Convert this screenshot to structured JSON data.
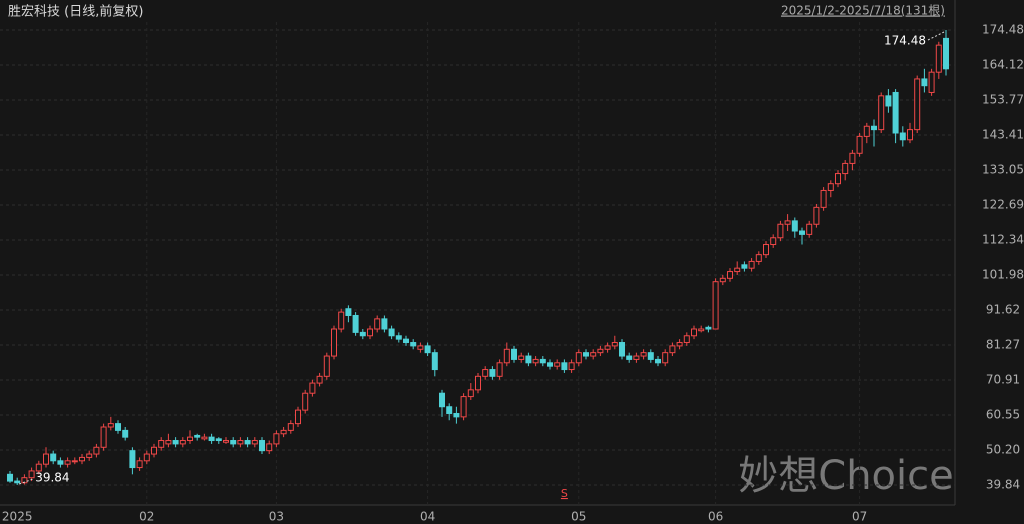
{
  "chart_data": {
    "type": "candlestick",
    "title": "胜宏科技 (日线,前复权)",
    "range_label": "2025/1/2-2025/7/18(131根)",
    "watermark": "妙想Choice",
    "signal": {
      "label": "S",
      "index": 77
    },
    "up_color": "#f04848",
    "down_color": "#4fd1d6",
    "ylim": [
      35.4,
      176.85
    ],
    "yticks": [
      39.84,
      {
        "value": 50.2,
        "label": "50.20"
      },
      60.55,
      70.91,
      81.27,
      91.62,
      101.98,
      112.34,
      122.69,
      133.05,
      143.41,
      153.77,
      164.12,
      174.48
    ],
    "xticks": [
      {
        "value": 1,
        "label": "2025"
      },
      {
        "value": 19,
        "label": "02"
      },
      {
        "value": 37,
        "label": "03"
      },
      {
        "value": 58,
        "label": "04"
      },
      {
        "value": 79,
        "label": "05"
      },
      {
        "value": 98,
        "label": "06"
      },
      {
        "value": 118,
        "label": "07"
      }
    ],
    "grid": true,
    "ohlc": [
      [
        43,
        44,
        40.5,
        41
      ],
      [
        41,
        42,
        39.84,
        40.5
      ],
      [
        40.5,
        43,
        40,
        42
      ],
      [
        42,
        45,
        41,
        44
      ],
      [
        44,
        47,
        43,
        46
      ],
      [
        46,
        51,
        45,
        49
      ],
      [
        49,
        50,
        46,
        47
      ],
      [
        47,
        48,
        45,
        46
      ],
      [
        46,
        48,
        45,
        47
      ],
      [
        47,
        48,
        46,
        47
      ],
      [
        47,
        49,
        46,
        48
      ],
      [
        48,
        50,
        47,
        49
      ],
      [
        49,
        52,
        48,
        51
      ],
      [
        51,
        58,
        50,
        57
      ],
      [
        57,
        60,
        56,
        58
      ],
      [
        58,
        59,
        55,
        56
      ],
      [
        56,
        57,
        53,
        54
      ],
      [
        50,
        51,
        43,
        45
      ],
      [
        45,
        48,
        44,
        47
      ],
      [
        47,
        50,
        46,
        49
      ],
      [
        49,
        52,
        48,
        51
      ],
      [
        51,
        54,
        50,
        53
      ],
      [
        52,
        55,
        51,
        53
      ],
      [
        53,
        54,
        51,
        52
      ],
      [
        52,
        54,
        51,
        53
      ],
      [
        53,
        56,
        52,
        54
      ],
      [
        54.5,
        55,
        53,
        54
      ],
      [
        53.5,
        55,
        53,
        54
      ],
      [
        54,
        55,
        52,
        53
      ],
      [
        53.5,
        54,
        52,
        53
      ],
      [
        52.5,
        54,
        52,
        53
      ],
      [
        53,
        54,
        51,
        52
      ],
      [
        52,
        54,
        51,
        53
      ],
      [
        53,
        54,
        51,
        52
      ],
      [
        52,
        54,
        51,
        53
      ],
      [
        53,
        54,
        49,
        50
      ],
      [
        50,
        53,
        49,
        52
      ],
      [
        52,
        56,
        51,
        55
      ],
      [
        55,
        57,
        54,
        56
      ],
      [
        56,
        59,
        55,
        58
      ],
      [
        58,
        63,
        57,
        62
      ],
      [
        62,
        68,
        61,
        67
      ],
      [
        67,
        71,
        66,
        70
      ],
      [
        70,
        73,
        69,
        72
      ],
      [
        72,
        79,
        71,
        78
      ],
      [
        78,
        87,
        77,
        86
      ],
      [
        86,
        92,
        85,
        91
      ],
      [
        92,
        93,
        88,
        90
      ],
      [
        90,
        91,
        84,
        85
      ],
      [
        85,
        86,
        83,
        84
      ],
      [
        84,
        87,
        83,
        86
      ],
      [
        86,
        90,
        85,
        89
      ],
      [
        89,
        90,
        85,
        86
      ],
      [
        86,
        87,
        83,
        84
      ],
      [
        84,
        85,
        82,
        83
      ],
      [
        83,
        84,
        81,
        82
      ],
      [
        82,
        83,
        80,
        81
      ],
      [
        80,
        82,
        79,
        81
      ],
      [
        81,
        82,
        78,
        79
      ],
      [
        79,
        80,
        72,
        74
      ],
      [
        67,
        68,
        60,
        63
      ],
      [
        63,
        64,
        59,
        61
      ],
      [
        61,
        63,
        58,
        60
      ],
      [
        60,
        67,
        59,
        66
      ],
      [
        66,
        70,
        65,
        68
      ],
      [
        68,
        73,
        67,
        72
      ],
      [
        72,
        75,
        71,
        74
      ],
      [
        74,
        75,
        71,
        72
      ],
      [
        72,
        77,
        71,
        76
      ],
      [
        76,
        82,
        75,
        80
      ],
      [
        80,
        81,
        76,
        77
      ],
      [
        77,
        79,
        76,
        78
      ],
      [
        78,
        79,
        75,
        76
      ],
      [
        76,
        78,
        75,
        77
      ],
      [
        77,
        78,
        75,
        76
      ],
      [
        76,
        77,
        74,
        75
      ],
      [
        75,
        77,
        74,
        76
      ],
      [
        76,
        77,
        73,
        74
      ],
      [
        74,
        77,
        73,
        76
      ],
      [
        76,
        80,
        75,
        79
      ],
      [
        79,
        80,
        77,
        78
      ],
      [
        78,
        80,
        77,
        79
      ],
      [
        79,
        81,
        78,
        80
      ],
      [
        80,
        82,
        79,
        81
      ],
      [
        81,
        84,
        80,
        82
      ],
      [
        82,
        83,
        77,
        78
      ],
      [
        78,
        79,
        76,
        77
      ],
      [
        77,
        79,
        76,
        78
      ],
      [
        78,
        80,
        77,
        79
      ],
      [
        79,
        80,
        76,
        77
      ],
      [
        77,
        78,
        75,
        76
      ],
      [
        76,
        80,
        75,
        79
      ],
      [
        79,
        82,
        78,
        81
      ],
      [
        81,
        83,
        80,
        82
      ],
      [
        82,
        85,
        81,
        84
      ],
      [
        84,
        87,
        83,
        86
      ],
      [
        85.5,
        87,
        85,
        86
      ],
      [
        86.5,
        87,
        85,
        86
      ],
      [
        86,
        101,
        86,
        100
      ],
      [
        100,
        102,
        99,
        101
      ],
      [
        101,
        104,
        100,
        103
      ],
      [
        103,
        106,
        102,
        104
      ],
      [
        105,
        106,
        103,
        104
      ],
      [
        104,
        107,
        103,
        106
      ],
      [
        106,
        109,
        105,
        108
      ],
      [
        108,
        112,
        107,
        111
      ],
      [
        111,
        114,
        110,
        113
      ],
      [
        113,
        118,
        112,
        117
      ],
      [
        117,
        120,
        115,
        118
      ],
      [
        118,
        119,
        113,
        115
      ],
      [
        115,
        116,
        111,
        114
      ],
      [
        114,
        118,
        113,
        117
      ],
      [
        117,
        123,
        116,
        122
      ],
      [
        122,
        128,
        121,
        127
      ],
      [
        127,
        130,
        125,
        129
      ],
      [
        129,
        133,
        128,
        132
      ],
      [
        132,
        136,
        130,
        135
      ],
      [
        135,
        139,
        133,
        138
      ],
      [
        138,
        144,
        137,
        143
      ],
      [
        143,
        147,
        141,
        146
      ],
      [
        146,
        148,
        140,
        145
      ],
      [
        145,
        156,
        144,
        155
      ],
      [
        155,
        157,
        150,
        152
      ],
      [
        156,
        157,
        141,
        144
      ],
      [
        144,
        146,
        140,
        142
      ],
      [
        142,
        147,
        141,
        145
      ],
      [
        145,
        161,
        144,
        160
      ],
      [
        160,
        163,
        156,
        158
      ],
      [
        156,
        163,
        155,
        162
      ],
      [
        162,
        171,
        160,
        170
      ],
      [
        172,
        174.48,
        161,
        163
      ]
    ]
  }
}
